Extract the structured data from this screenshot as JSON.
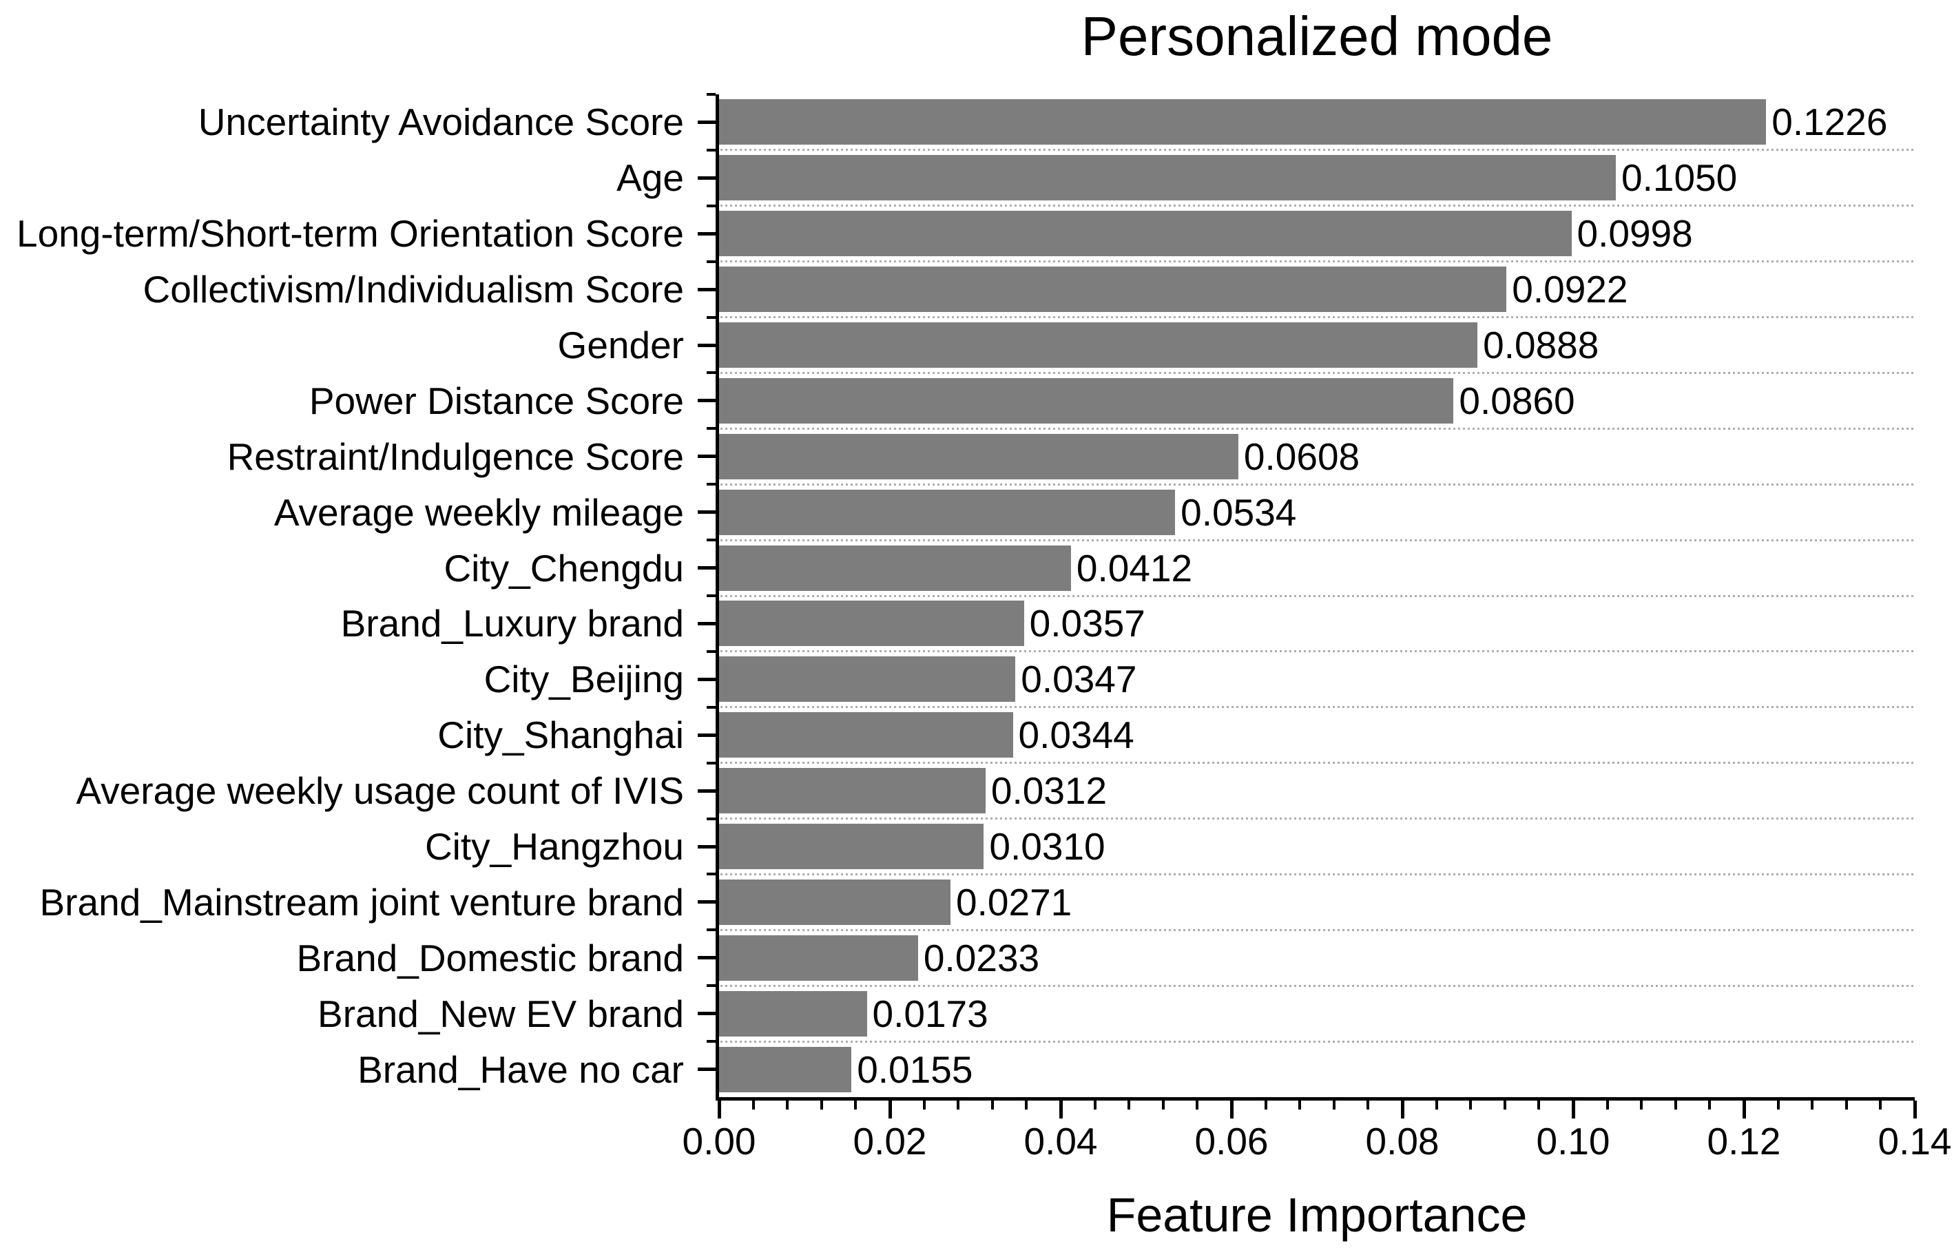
{
  "chart_data": {
    "type": "bar",
    "orientation": "horizontal",
    "title": "Personalized mode",
    "xlabel": "Feature Importance",
    "ylabel": "",
    "categories": [
      "Uncertainty Avoidance Score",
      "Age",
      "Long-term/Short-term Orientation Score",
      "Collectivism/Individualism Score",
      "Gender",
      "Power Distance Score",
      "Restraint/Indulgence Score",
      "Average weekly mileage",
      "City_Chengdu",
      "Brand_Luxury brand",
      "City_Beijing",
      "City_Shanghai",
      "Average weekly usage count of IVIS",
      "City_Hangzhou",
      "Brand_Mainstream joint venture brand",
      "Brand_Domestic brand",
      "Brand_New EV brand",
      "Brand_Have no car"
    ],
    "values": [
      0.1226,
      0.105,
      0.0998,
      0.0922,
      0.0888,
      0.086,
      0.0608,
      0.0534,
      0.0412,
      0.0357,
      0.0347,
      0.0344,
      0.0312,
      0.031,
      0.0271,
      0.0233,
      0.0173,
      0.0155
    ],
    "value_labels": [
      "0.1226",
      "0.1050",
      "0.0998",
      "0.0922",
      "0.0888",
      "0.0860",
      "0.0608",
      "0.0534",
      "0.0412",
      "0.0357",
      "0.0347",
      "0.0344",
      "0.0312",
      "0.0310",
      "0.0271",
      "0.0233",
      "0.0173",
      "0.0155"
    ],
    "xlim": [
      0,
      0.14
    ],
    "x_tick_labels": [
      "0.00",
      "0.02",
      "0.04",
      "0.06",
      "0.08",
      "0.10",
      "0.12",
      "0.14"
    ],
    "x_major_tick_step": 0.02,
    "x_minor_tick_step": 0.004,
    "grid": "horizontal dotted lines between bars",
    "legend": "none",
    "bar_color": "#7d7d7d",
    "grid_color": "#adadad",
    "axis_color": "#000000",
    "text_color": "#000000",
    "background_color": "#ffffff"
  }
}
